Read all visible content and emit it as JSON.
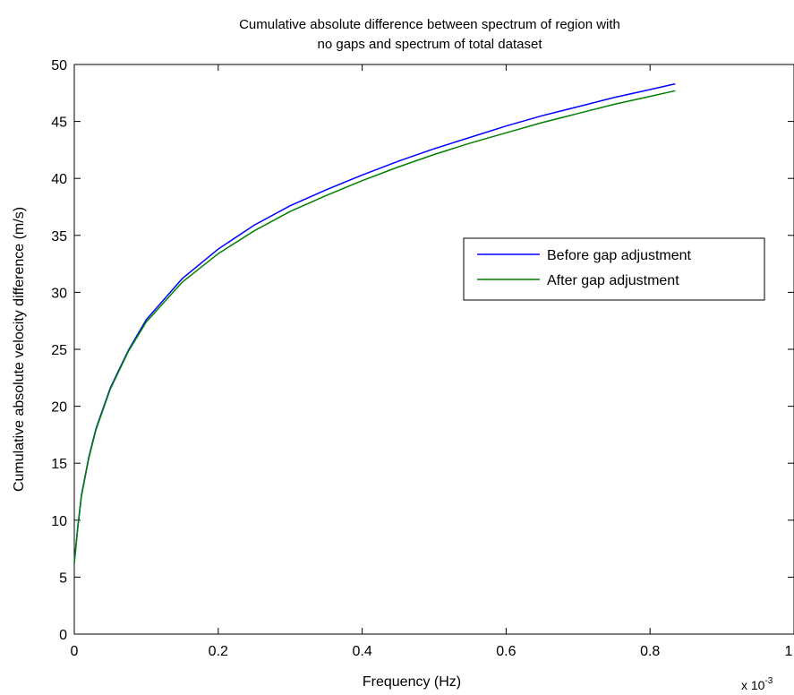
{
  "chart_data": {
    "type": "line",
    "title_lines": [
      "Cumulative absolute difference between spectrum of region with",
      "no gaps and spectrum of total dataset"
    ],
    "xlabel": "Frequency (Hz)",
    "ylabel": "Cumulative absolute velocity difference (m/s)",
    "x_multiplier_base": "x 10",
    "x_multiplier_exponent": "-3",
    "xlim": [
      0,
      1
    ],
    "ylim": [
      0,
      50
    ],
    "xticks": [
      0,
      0.2,
      0.4,
      0.6,
      0.8,
      1
    ],
    "xtick_labels": [
      "0",
      "0.2",
      "0.4",
      "0.6",
      "0.8",
      "1"
    ],
    "yticks": [
      0,
      5,
      10,
      15,
      20,
      25,
      30,
      35,
      40,
      45,
      50
    ],
    "ytick_labels": [
      "0",
      "5",
      "10",
      "15",
      "20",
      "25",
      "30",
      "35",
      "40",
      "45",
      "50"
    ],
    "grid": false,
    "legend_position": "center-right",
    "x": [
      0.0,
      0.005,
      0.01,
      0.02,
      0.03,
      0.05,
      0.075,
      0.1,
      0.15,
      0.2,
      0.25,
      0.3,
      0.35,
      0.4,
      0.45,
      0.5,
      0.55,
      0.6,
      0.65,
      0.7,
      0.75,
      0.8,
      0.835
    ],
    "series": [
      {
        "name": "Before gap adjustment",
        "color": "#0000ff",
        "values": [
          6.3,
          9.5,
          12.2,
          15.5,
          18.0,
          21.6,
          24.9,
          27.6,
          31.2,
          33.8,
          35.9,
          37.6,
          39.0,
          40.3,
          41.5,
          42.6,
          43.6,
          44.6,
          45.5,
          46.3,
          47.1,
          47.8,
          48.3
        ]
      },
      {
        "name": "After gap adjustment",
        "color": "#008000",
        "values": [
          6.2,
          9.4,
          12.1,
          15.4,
          17.9,
          21.5,
          24.8,
          27.4,
          30.9,
          33.4,
          35.4,
          37.1,
          38.5,
          39.8,
          41.0,
          42.1,
          43.1,
          44.0,
          44.9,
          45.7,
          46.5,
          47.2,
          47.7
        ]
      }
    ]
  }
}
